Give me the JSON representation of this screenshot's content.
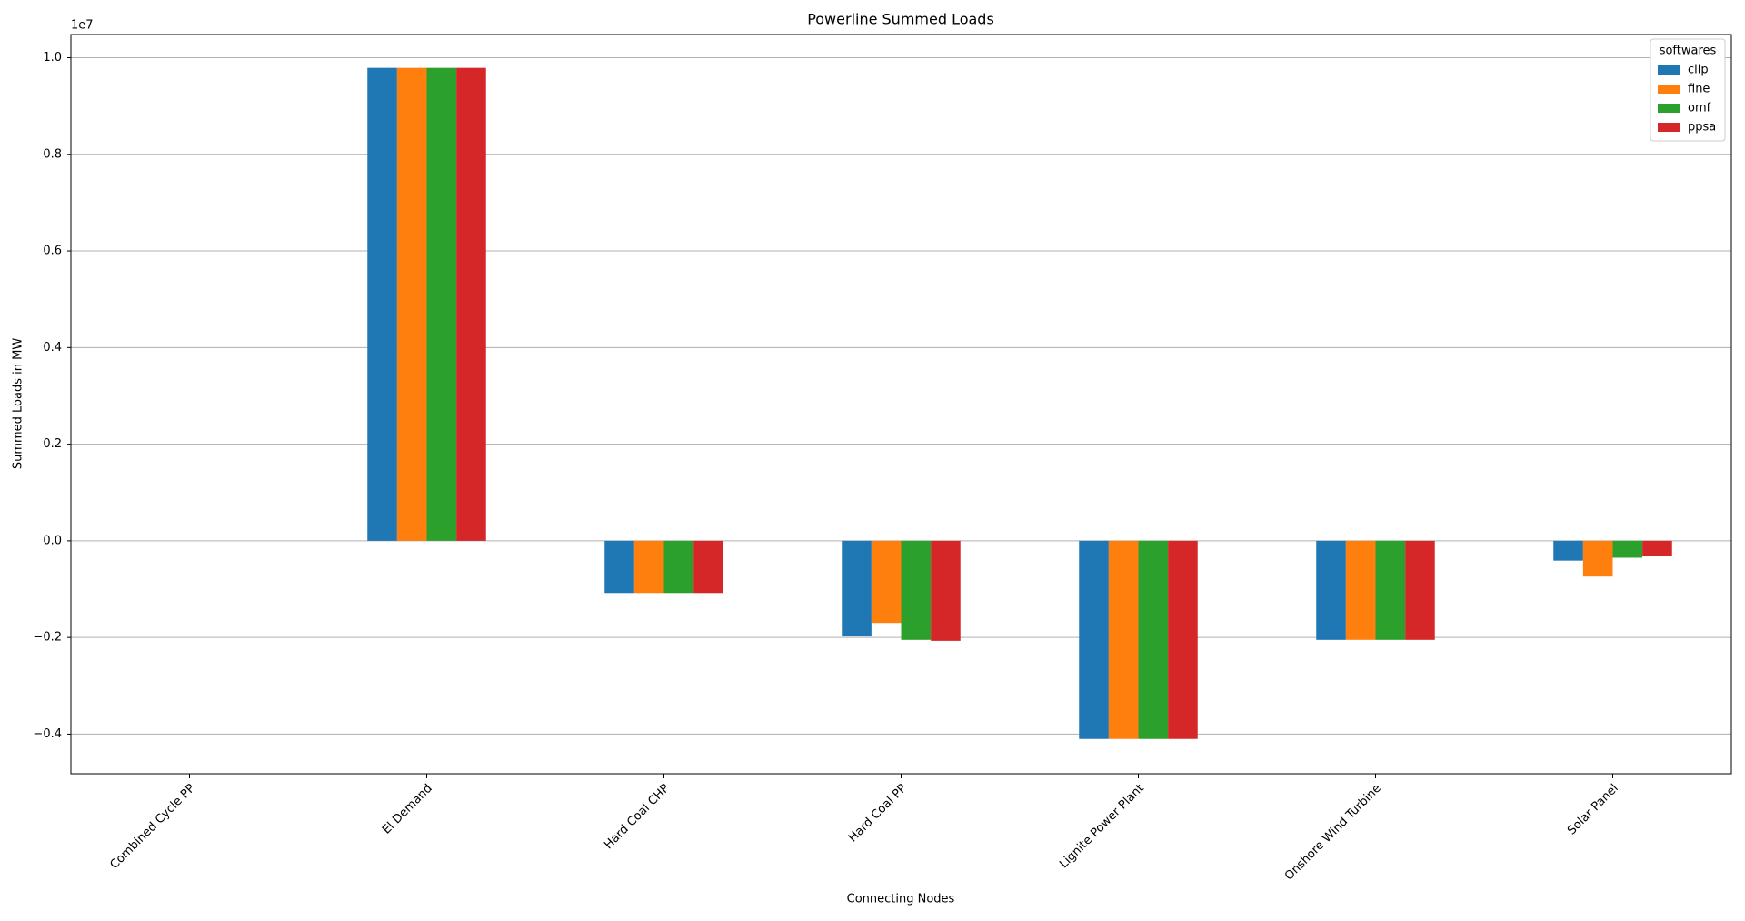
{
  "chart_data": {
    "type": "bar",
    "title": "Powerline Summed Loads",
    "x_label": "Connecting Nodes",
    "y_label": "Summed Loads in MW",
    "y_offset_label": "1e7",
    "categories": [
      "Combined Cycle PP",
      "El Demand",
      "Hard Coal CHP",
      "Hard Coal PP",
      "Lignite Power Plant",
      "Onshore Wind Turbine",
      "Solar Panel"
    ],
    "legend_title": "softwares",
    "legend_position": "upper right",
    "series": [
      {
        "name": "cllp",
        "color": "#1f77b4",
        "values": [
          0,
          0.979,
          -0.108,
          -0.198,
          -0.41,
          -0.205,
          -0.041
        ]
      },
      {
        "name": "fine",
        "color": "#ff7f0e",
        "values": [
          0,
          0.979,
          -0.108,
          -0.17,
          -0.41,
          -0.205,
          -0.074
        ]
      },
      {
        "name": "omf",
        "color": "#2ca02c",
        "values": [
          0,
          0.979,
          -0.108,
          -0.205,
          -0.41,
          -0.205,
          -0.035
        ]
      },
      {
        "name": "ppsa",
        "color": "#d62728",
        "values": [
          0,
          0.979,
          -0.108,
          -0.207,
          -0.41,
          -0.205,
          -0.032
        ]
      }
    ],
    "ylim": [
      -0.482,
      1.048
    ],
    "yticks": [
      {
        "value": -0.4,
        "label": "−0.4"
      },
      {
        "value": -0.2,
        "label": "−0.2"
      },
      {
        "value": 0,
        "label": "0.0"
      },
      0.2,
      0.4,
      0.6,
      0.8,
      {
        "value": 1,
        "label": "1.0"
      }
    ],
    "grid": true
  }
}
